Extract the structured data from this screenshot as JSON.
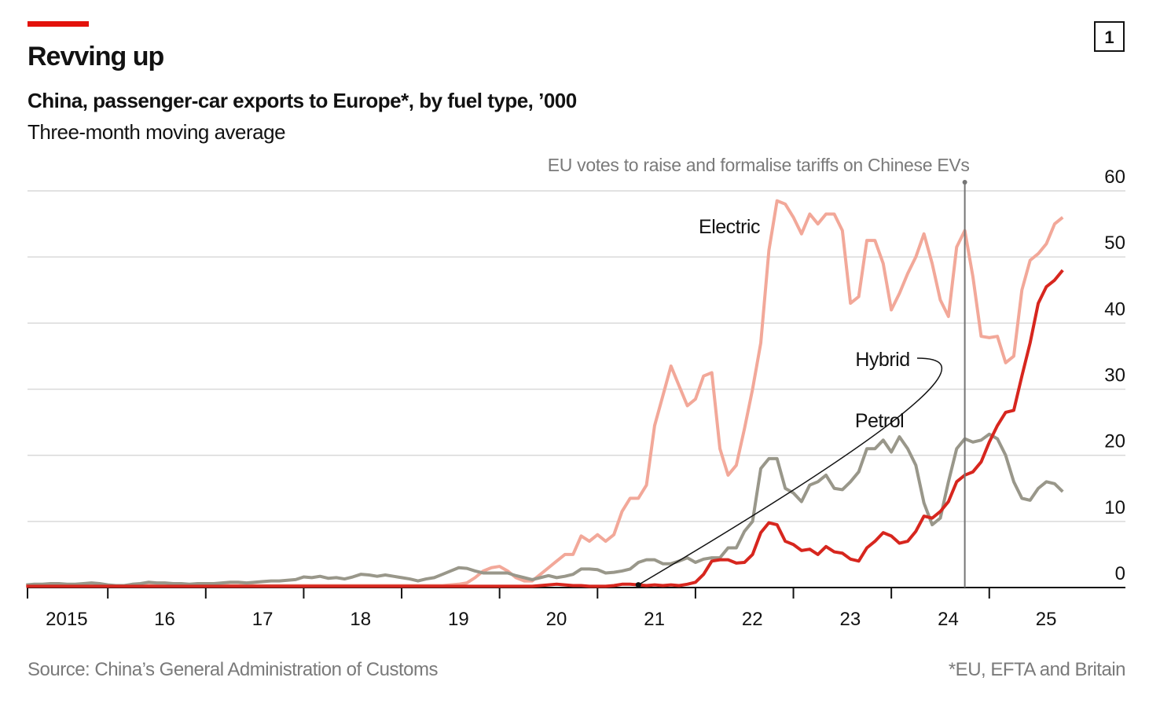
{
  "chart_data": {
    "type": "line",
    "badge": "1",
    "title": "Revving up",
    "subtitle": "China, passenger-car exports to Europe*, by fuel type, ’000",
    "note": "Three-month moving average",
    "source": "Source: China’s General Administration of Customs",
    "footnote": "*EU, EFTA and Britain",
    "annotations": [
      {
        "text": "EU votes to raise and formalise tariffs on Chinese EVs",
        "x": 2024.75
      }
    ],
    "xlim": [
      2015.18,
      2026.39
    ],
    "ylim": [
      0,
      60
    ],
    "yticks": [
      0,
      10,
      20,
      30,
      40,
      50,
      60
    ],
    "xticks": [
      {
        "value": 2015,
        "label": "2015"
      },
      {
        "value": 2016,
        "label": "16"
      },
      {
        "value": 2017,
        "label": "17"
      },
      {
        "value": 2018,
        "label": "18"
      },
      {
        "value": 2019,
        "label": "19"
      },
      {
        "value": 2020,
        "label": "20"
      },
      {
        "value": 2021,
        "label": "21"
      },
      {
        "value": 2022,
        "label": "22"
      },
      {
        "value": 2023,
        "label": "23"
      },
      {
        "value": 2024,
        "label": "24"
      },
      {
        "value": 2025,
        "label": "25"
      }
    ],
    "grid": true,
    "x": [
      2015.167,
      2015.25,
      2015.333,
      2015.417,
      2015.5,
      2015.583,
      2015.667,
      2015.75,
      2015.833,
      2015.917,
      2016,
      2016.083,
      2016.167,
      2016.25,
      2016.333,
      2016.417,
      2016.5,
      2016.583,
      2016.667,
      2016.75,
      2016.833,
      2016.917,
      2017,
      2017.083,
      2017.167,
      2017.25,
      2017.333,
      2017.417,
      2017.5,
      2017.583,
      2017.667,
      2017.75,
      2017.833,
      2017.917,
      2018,
      2018.083,
      2018.167,
      2018.25,
      2018.333,
      2018.417,
      2018.5,
      2018.583,
      2018.667,
      2018.75,
      2018.833,
      2018.917,
      2019,
      2019.083,
      2019.167,
      2019.25,
      2019.333,
      2019.417,
      2019.5,
      2019.583,
      2019.667,
      2019.75,
      2019.833,
      2019.917,
      2020,
      2020.083,
      2020.167,
      2020.25,
      2020.333,
      2020.417,
      2020.5,
      2020.583,
      2020.667,
      2020.75,
      2020.833,
      2020.917,
      2021,
      2021.083,
      2021.167,
      2021.25,
      2021.333,
      2021.417,
      2021.5,
      2021.583,
      2021.667,
      2021.75,
      2021.833,
      2021.917,
      2022,
      2022.083,
      2022.167,
      2022.25,
      2022.333,
      2022.417,
      2022.5,
      2022.583,
      2022.667,
      2022.75,
      2022.833,
      2022.917,
      2023,
      2023.083,
      2023.167,
      2023.25,
      2023.333,
      2023.417,
      2023.5,
      2023.583,
      2023.667,
      2023.75,
      2023.833,
      2023.917,
      2024,
      2024.083,
      2024.167,
      2024.25,
      2024.333,
      2024.417,
      2024.5,
      2024.583,
      2024.667,
      2024.75,
      2024.833,
      2024.917,
      2025,
      2025.083,
      2025.167,
      2025.25,
      2025.333,
      2025.417,
      2025.5,
      2025.583,
      2025.667,
      2025.75
    ],
    "series": [
      {
        "name": "Electric",
        "color": "#f2a899",
        "values": [
          0.3,
          0.3,
          0.3,
          0.3,
          0.3,
          0.3,
          0.3,
          0.3,
          0.3,
          0.3,
          0.3,
          0.3,
          0.3,
          0.3,
          0.3,
          0.3,
          0.3,
          0.3,
          0.3,
          0.3,
          0.3,
          0.3,
          0.3,
          0.3,
          0.3,
          0.3,
          0.3,
          0.3,
          0.3,
          0.3,
          0.3,
          0.3,
          0.3,
          0.3,
          0.3,
          0.3,
          0.3,
          0.3,
          0.3,
          0.3,
          0.3,
          0.3,
          0.3,
          0.3,
          0.3,
          0.3,
          0.3,
          0.3,
          0.3,
          0.3,
          0.3,
          0.3,
          0.4,
          0.5,
          0.7,
          1.5,
          2.5,
          3,
          3.2,
          2.5,
          1.5,
          1,
          1,
          2,
          3,
          4,
          5,
          5,
          7.8,
          7,
          8,
          7,
          8,
          11.5,
          13.5,
          13.5,
          15.5,
          24.5,
          29,
          33.5,
          30.5,
          27.5,
          28.5,
          32,
          32.5,
          21,
          17,
          18.5,
          24,
          30,
          37,
          51,
          58.5,
          58,
          56,
          53.5,
          56.5,
          55,
          56.5,
          56.5,
          54,
          43,
          44,
          52.5,
          52.5,
          49,
          42,
          44.5,
          47.5,
          50,
          53.5,
          49,
          43.5,
          41,
          51.5,
          54,
          47,
          38,
          37.8,
          38,
          34,
          35,
          45,
          49.5,
          50.5,
          52,
          55,
          56
        ]
      },
      {
        "name": "Petrol",
        "color": "#99978a",
        "values": [
          0.4,
          0.5,
          0.5,
          0.6,
          0.6,
          0.5,
          0.5,
          0.6,
          0.7,
          0.6,
          0.4,
          0.3,
          0.3,
          0.5,
          0.6,
          0.8,
          0.7,
          0.7,
          0.6,
          0.6,
          0.5,
          0.6,
          0.6,
          0.6,
          0.7,
          0.8,
          0.8,
          0.7,
          0.8,
          0.9,
          1,
          1,
          1.1,
          1.2,
          1.6,
          1.5,
          1.7,
          1.4,
          1.5,
          1.3,
          1.6,
          2,
          1.9,
          1.7,
          1.9,
          1.7,
          1.5,
          1.3,
          1,
          1.3,
          1.5,
          2,
          2.5,
          3,
          2.9,
          2.5,
          2.2,
          2.2,
          2.2,
          2.2,
          1.8,
          1.5,
          1.2,
          1.5,
          1.8,
          1.5,
          1.7,
          2,
          2.8,
          2.8,
          2.7,
          2.2,
          2.3,
          2.5,
          2.8,
          3.8,
          4.2,
          4.2,
          3.6,
          3.6,
          4,
          4.5,
          3.8,
          4.3,
          4.5,
          4.5,
          6,
          6,
          8.5,
          10,
          18,
          19.5,
          19.5,
          15,
          14.3,
          13,
          15.5,
          16,
          17,
          15,
          14.8,
          16,
          17.5,
          21,
          21,
          22.3,
          20.5,
          22.8,
          21,
          18.5,
          12.8,
          9.5,
          10.5,
          16,
          21,
          22.5,
          22,
          22.3,
          23.2,
          22.5,
          20,
          16,
          13.5,
          13.2,
          15,
          16,
          15.7,
          14.5
        ]
      },
      {
        "name": "Hybrid",
        "color": "#d7261e",
        "values": [
          0.2,
          0.2,
          0.2,
          0.2,
          0.2,
          0.2,
          0.2,
          0.2,
          0.2,
          0.2,
          0.2,
          0.2,
          0.2,
          0.2,
          0.2,
          0.2,
          0.2,
          0.2,
          0.2,
          0.2,
          0.2,
          0.2,
          0.2,
          0.2,
          0.2,
          0.2,
          0.2,
          0.2,
          0.2,
          0.2,
          0.2,
          0.2,
          0.2,
          0.2,
          0.2,
          0.2,
          0.2,
          0.2,
          0.2,
          0.2,
          0.2,
          0.2,
          0.2,
          0.2,
          0.2,
          0.2,
          0.2,
          0.2,
          0.2,
          0.2,
          0.2,
          0.2,
          0.2,
          0.2,
          0.2,
          0.2,
          0.2,
          0.2,
          0.2,
          0.2,
          0.2,
          0.2,
          0.2,
          0.3,
          0.4,
          0.5,
          0.4,
          0.3,
          0.3,
          0.2,
          0.2,
          0.2,
          0.3,
          0.5,
          0.5,
          0.4,
          0.3,
          0.4,
          0.3,
          0.4,
          0.3,
          0.5,
          0.8,
          2,
          4,
          4.2,
          4.2,
          3.7,
          3.8,
          5,
          8.3,
          9.8,
          9.5,
          7,
          6.5,
          5.6,
          5.8,
          5,
          6.2,
          5.4,
          5.2,
          4.3,
          4,
          6,
          7,
          8.3,
          7.8,
          6.7,
          7,
          8.5,
          10.8,
          10.5,
          11.5,
          13,
          16,
          17,
          17.5,
          19,
          22,
          24.5,
          26.5,
          26.8,
          32,
          37,
          43,
          45.5,
          46.5,
          48
        ]
      }
    ]
  }
}
